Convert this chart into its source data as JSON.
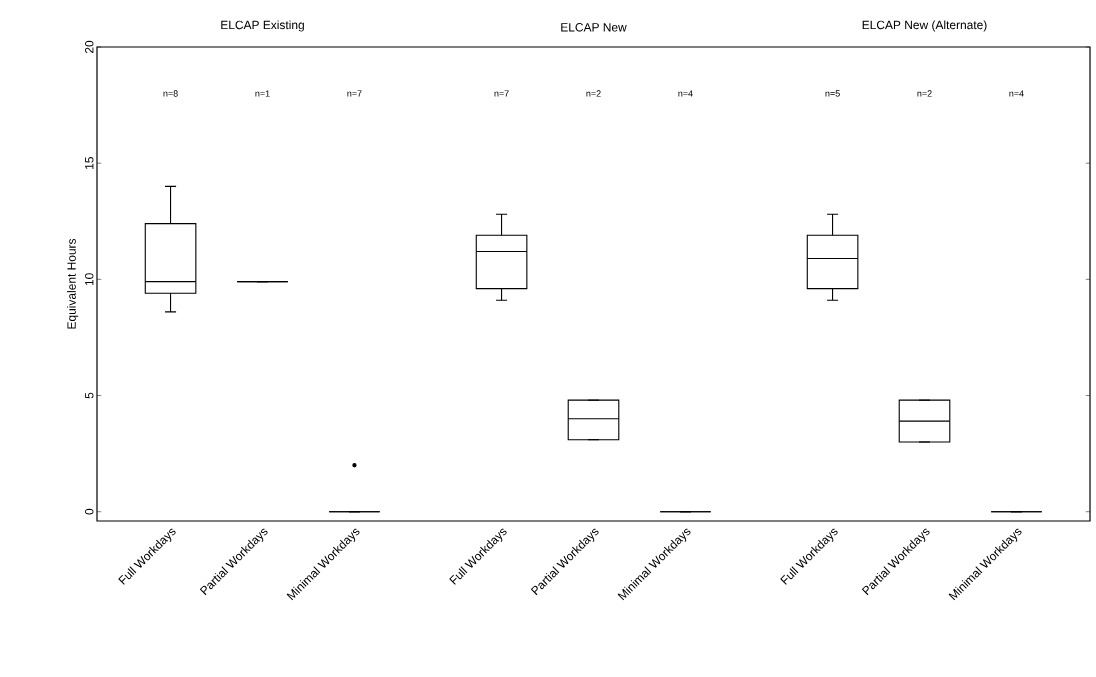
{
  "chart_data": {
    "type": "box",
    "ylabel": "Equivalent Hours",
    "categories": [
      "Full Workdays",
      "Partial Workdays",
      "Minimal Workdays",
      "Full Workdays",
      "Partial Workdays",
      "Minimal Workdays",
      "Full Workdays",
      "Partial Workdays",
      "Minimal Workdays"
    ],
    "ylim": [
      -0.4,
      20
    ],
    "yticks": [
      0,
      5,
      10,
      15,
      20
    ],
    "boxes": [
      {
        "low": 8.6,
        "q1": 9.4,
        "median": 9.9,
        "q3": 12.4,
        "high": 14.0
      },
      {
        "low": 9.9,
        "q1": 9.9,
        "median": 9.9,
        "q3": 9.9,
        "high": 9.9
      },
      {
        "low": 0,
        "q1": 0,
        "median": 0,
        "q3": 0,
        "high": 0,
        "outliers": [
          2.0
        ]
      },
      {
        "low": 9.1,
        "q1": 9.6,
        "median": 11.2,
        "q3": 11.9,
        "high": 12.8
      },
      {
        "low": 3.1,
        "q1": 3.1,
        "median": 4.0,
        "q3": 4.8,
        "high": 4.8
      },
      {
        "low": 0,
        "q1": 0,
        "median": 0,
        "q3": 0,
        "high": 0
      },
      {
        "low": 9.1,
        "q1": 9.6,
        "median": 10.9,
        "q3": 11.9,
        "high": 12.8
      },
      {
        "low": 3.0,
        "q1": 3.0,
        "median": 3.9,
        "q3": 4.8,
        "high": 4.8
      },
      {
        "low": 0,
        "q1": 0,
        "median": 0,
        "q3": 0,
        "high": 0
      }
    ],
    "annotations": [
      "ELCAP Existing",
      "ELCAP New",
      "ELCAP New (Alternate)",
      "n=8",
      "n=1",
      "n=7",
      "n=7",
      "n=2",
      "n=4",
      "n=5",
      "n=2",
      "n=4"
    ]
  }
}
